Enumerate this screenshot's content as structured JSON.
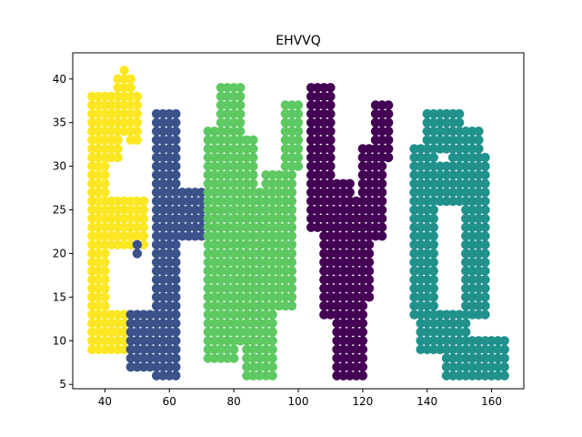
{
  "chart_data": {
    "type": "scatter",
    "title": "EHVVQ",
    "xlabel": "",
    "ylabel": "",
    "xlim": [
      30,
      170
    ],
    "ylim": [
      4.5,
      43
    ],
    "x_ticks": [
      40,
      60,
      80,
      100,
      120,
      140,
      160
    ],
    "y_ticks": [
      5,
      10,
      15,
      20,
      25,
      30,
      35,
      40
    ],
    "grid": false,
    "legend": "none",
    "colors": [
      "#fde725",
      "#3b528b",
      "#5ec962",
      "#440154",
      "#21918c"
    ],
    "series": [
      {
        "color": "#fde725",
        "regions": [
          {
            "x": [
              36,
              40
            ],
            "y": [
              9,
              38
            ]
          },
          {
            "x": [
              40,
              50
            ],
            "y": [
              34,
              38
            ]
          },
          {
            "x": [
              40,
              44
            ],
            "y": [
              31,
              34
            ]
          },
          {
            "x": [
              48,
              50
            ],
            "y": [
              33,
              35
            ]
          },
          {
            "x": [
              44,
              48
            ],
            "y": [
              38,
              40
            ]
          },
          {
            "x": [
              46,
              46
            ],
            "y": [
              40,
              41
            ]
          },
          {
            "x": [
              40,
              52
            ],
            "y": [
              21,
              26
            ]
          },
          {
            "x": [
              40,
              46
            ],
            "y": [
              9,
              13
            ]
          }
        ]
      },
      {
        "color": "#3b528b",
        "regions": [
          {
            "x": [
              56,
              62
            ],
            "y": [
              6,
              36
            ]
          },
          {
            "x": [
              62,
              72
            ],
            "y": [
              22,
              27
            ]
          },
          {
            "x": [
              48,
              56
            ],
            "y": [
              7,
              13
            ]
          },
          {
            "x": [
              50,
              50
            ],
            "y": [
              20,
              21
            ]
          }
        ]
      },
      {
        "color": "#5ec962",
        "regions": [
          {
            "x": [
              72,
              80
            ],
            "y": [
              8,
              34
            ]
          },
          {
            "x": [
              76,
              82
            ],
            "y": [
              34,
              39
            ]
          },
          {
            "x": [
              80,
              86
            ],
            "y": [
              10,
              33
            ]
          },
          {
            "x": [
              84,
              92
            ],
            "y": [
              6,
              27
            ]
          },
          {
            "x": [
              90,
              98
            ],
            "y": [
              14,
              29
            ]
          },
          {
            "x": [
              96,
              100
            ],
            "y": [
              30,
              37
            ]
          }
        ]
      },
      {
        "color": "#440154",
        "regions": [
          {
            "x": [
              104,
              110
            ],
            "y": [
              23,
              39
            ]
          },
          {
            "x": [
              108,
              116
            ],
            "y": [
              13,
              28
            ]
          },
          {
            "x": [
              112,
              120
            ],
            "y": [
              6,
              16
            ]
          },
          {
            "x": [
              114,
              122
            ],
            "y": [
              15,
              26
            ]
          },
          {
            "x": [
              120,
              126
            ],
            "y": [
              22,
              32
            ]
          },
          {
            "x": [
              124,
              128
            ],
            "y": [
              31,
              37
            ]
          }
        ]
      },
      {
        "color": "#21918c",
        "regions": [
          {
            "x": [
              136,
              142
            ],
            "y": [
              13,
              32
            ]
          },
          {
            "x": [
              140,
              150
            ],
            "y": [
              32,
              36
            ]
          },
          {
            "x": [
              148,
              156
            ],
            "y": [
              28,
              34
            ]
          },
          {
            "x": [
              152,
              158
            ],
            "y": [
              13,
              31
            ]
          },
          {
            "x": [
              138,
              152
            ],
            "y": [
              9,
              13
            ]
          },
          {
            "x": [
              146,
              164
            ],
            "y": [
              6,
              10
            ]
          },
          {
            "x": [
              140,
              150
            ],
            "y": [
              26,
              30
            ]
          }
        ]
      }
    ]
  }
}
